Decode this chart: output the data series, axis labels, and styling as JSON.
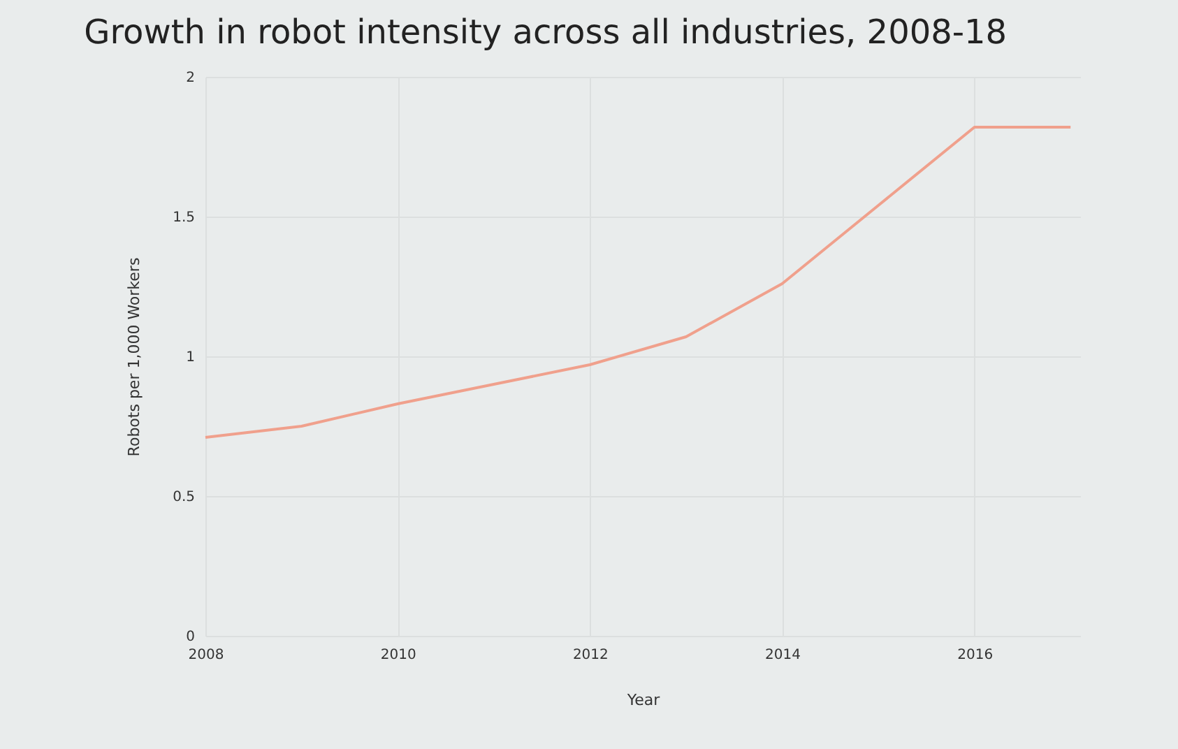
{
  "chart_data": {
    "type": "line",
    "title": "Growth in robot intensity across all industries, 2008-18",
    "xlabel": "Year",
    "ylabel": "Robots per 1,000 Workers",
    "x": [
      2008,
      2009,
      2010,
      2011,
      2012,
      2013,
      2014,
      2015,
      2016,
      2017
    ],
    "series": [
      {
        "color": "#f0a08c",
        "values": [
          0.71,
          0.75,
          0.83,
          0.9,
          0.97,
          1.07,
          1.26,
          1.54,
          1.82,
          1.82
        ]
      }
    ],
    "xlim": [
      2008,
      2017.1
    ],
    "xticks": [
      2008,
      2010,
      2012,
      2014,
      2016
    ],
    "ylim": [
      0,
      2
    ],
    "yticks": [
      0,
      0.5,
      1,
      1.5,
      2
    ],
    "grid": true,
    "marker": "none",
    "line_style": "solid"
  }
}
